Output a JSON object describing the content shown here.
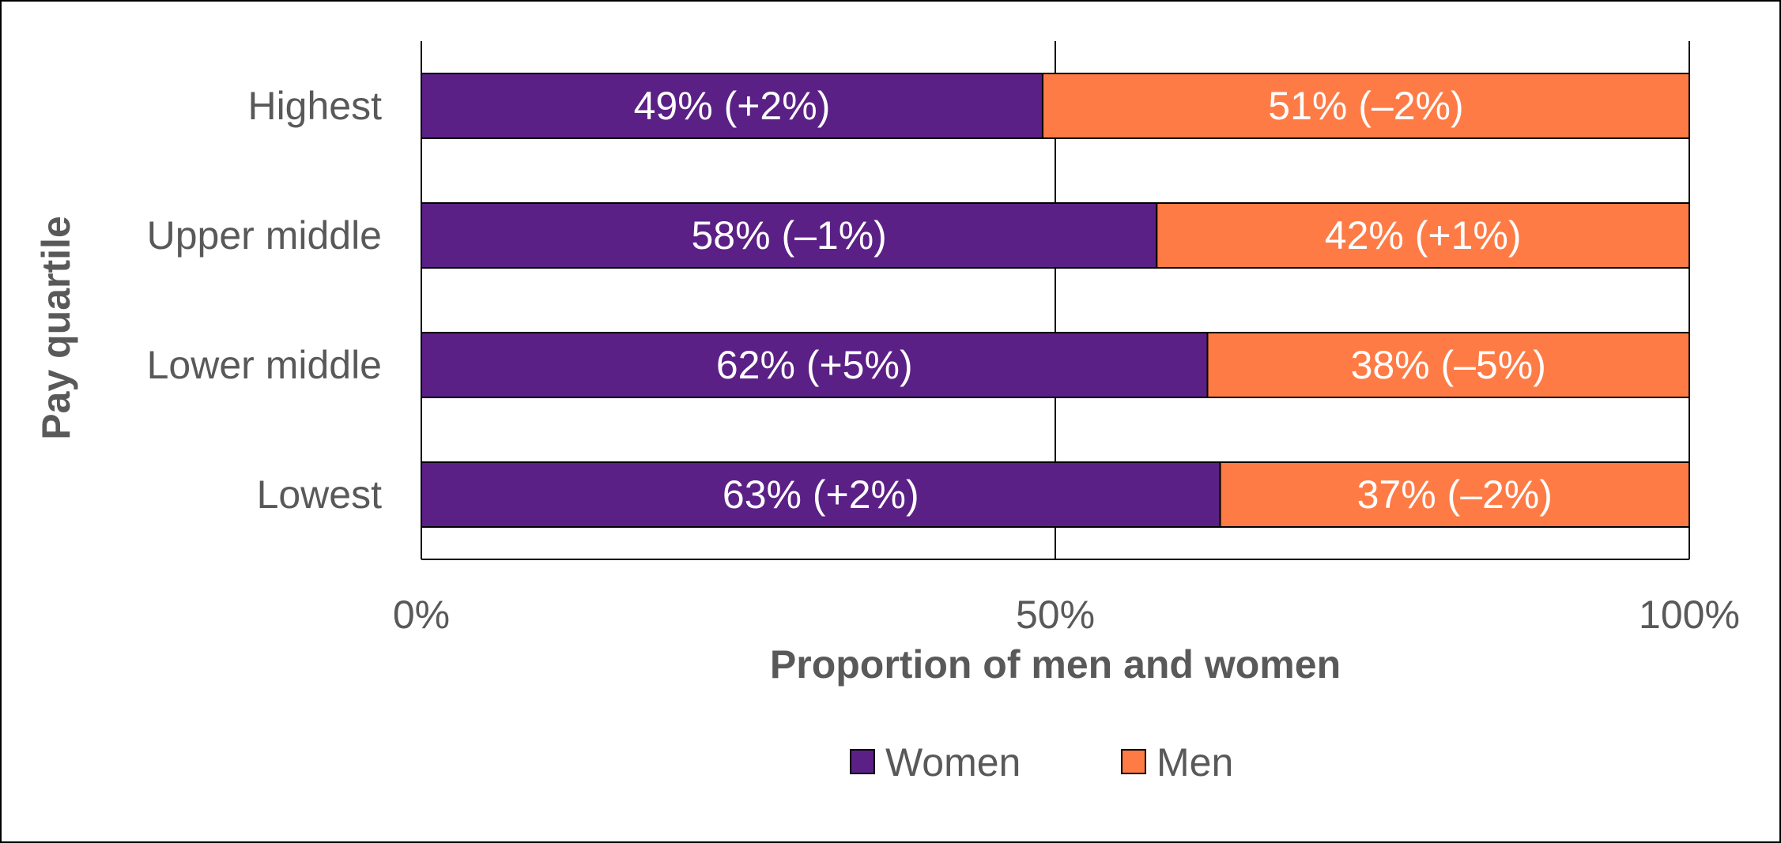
{
  "chart_data": {
    "type": "bar",
    "orientation": "horizontal",
    "stacked": true,
    "categories": [
      "Highest",
      "Upper middle",
      "Lower middle",
      "Lowest"
    ],
    "series": [
      {
        "name": "Women",
        "color": "#5b2085",
        "values": [
          49,
          58,
          62,
          63
        ],
        "labels": [
          "49% (+2%)",
          "58% (–1%)",
          "62% (+5%)",
          "63% (+2%)"
        ]
      },
      {
        "name": "Men",
        "color": "#ff7b45",
        "values": [
          51,
          42,
          38,
          37
        ],
        "labels": [
          "51% (–2%)",
          "42% (+1%)",
          "38% (–5%)",
          "37% (–2%)"
        ]
      }
    ],
    "xlabel": "Proportion of men and women",
    "ylabel": "Pay quartile",
    "xlim": [
      0,
      100
    ],
    "xticks": [
      0,
      50,
      100
    ],
    "xtick_labels": [
      "0%",
      "50%",
      "100%"
    ],
    "grid": "vertical",
    "legend": "bottom-center"
  }
}
